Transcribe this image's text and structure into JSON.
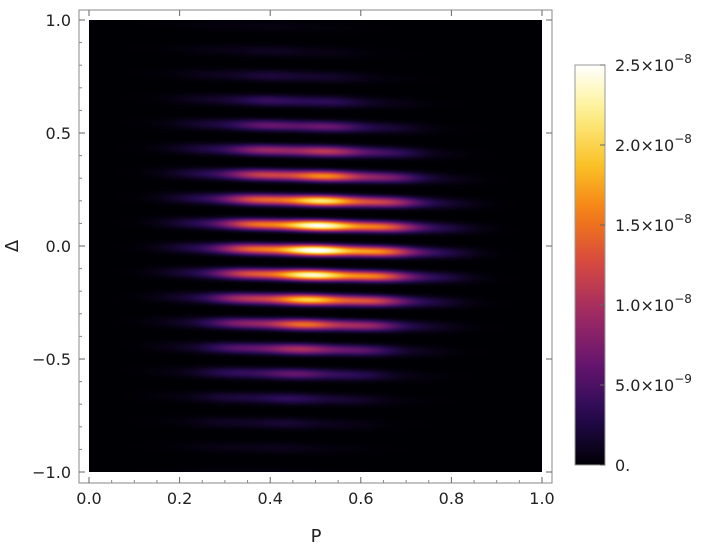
{
  "chart_data": {
    "type": "heatmap",
    "title": "",
    "xlabel": "P",
    "ylabel": "Δ",
    "xlim": [
      0.0,
      1.0
    ],
    "ylim": [
      -1.0,
      1.0
    ],
    "xticks": [
      "0.0",
      "0.2",
      "0.4",
      "0.6",
      "0.8",
      "1.0"
    ],
    "xtick_values": [
      0.0,
      0.2,
      0.4,
      0.6,
      0.8,
      1.0
    ],
    "yticks": [
      "1.0",
      "0.5",
      "0.0",
      "−0.5",
      "−1.0"
    ],
    "ytick_values": [
      1.0,
      0.5,
      0.0,
      -0.5,
      -1.0
    ],
    "colormap": "inferno-like",
    "colorbar": {
      "range": [
        0,
        2.5e-08
      ],
      "ticks": [
        {
          "value": 2.5e-08,
          "mantissa": "2.5",
          "exponent": "−8"
        },
        {
          "value": 2e-08,
          "mantissa": "2.0",
          "exponent": "−8"
        },
        {
          "value": 1.5e-08,
          "mantissa": "1.5",
          "exponent": "−8"
        },
        {
          "value": 1e-08,
          "mantissa": "1.0",
          "exponent": "−8"
        },
        {
          "value": 5e-09,
          "mantissa": "5.0",
          "exponent": "−9"
        },
        {
          "value": 0,
          "mantissa": "0.",
          "exponent": ""
        }
      ]
    },
    "peak": {
      "x": 0.52,
      "y": 0.0,
      "value": 2.5e-08
    },
    "pattern": "fringes"
  }
}
